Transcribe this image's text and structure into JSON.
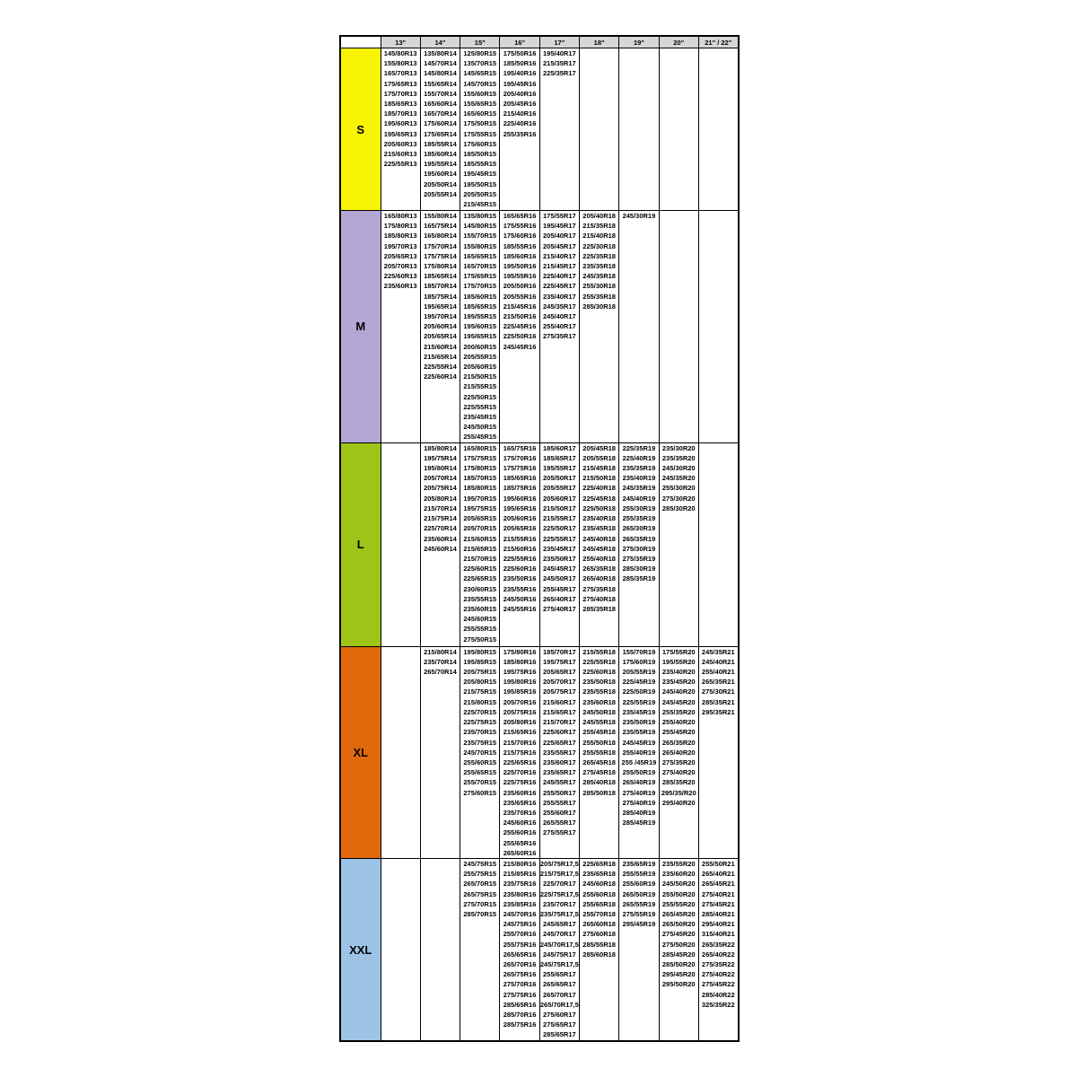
{
  "table": {
    "columns": [
      "",
      "13\"",
      "14\"",
      "15\"",
      "16\"",
      "17\"",
      "18\"",
      "19\"",
      "20\"",
      "21\" / 22\""
    ],
    "header_bg": "#d6d6d6",
    "rows": [
      {
        "label": "S",
        "color": "#f8f402",
        "cells": [
          [
            "145/80R13",
            "155/80R13",
            "165/70R13",
            "175/65R13",
            "175/70R13",
            "185/65R13",
            "185/70R13",
            "195/60R13",
            "195/65R13",
            "205/60R13",
            "215/60R13",
            "225/55R13"
          ],
          [
            "135/80R14",
            "145/70R14",
            "145/80R14",
            "155/65R14",
            "155/70R14",
            "165/60R14",
            "165/70R14",
            "175/60R14",
            "175/65R14",
            "185/55R14",
            "185/60R14",
            "195/55R14",
            "195/60R14",
            "205/50R14",
            "205/55R14"
          ],
          [
            "125/80R15",
            "135/70R15",
            "145/65R15",
            "145/70R15",
            "155/60R15",
            "155/65R15",
            "165/60R15",
            "175/50R15",
            "175/55R15",
            "175/60R15",
            "185/50R15",
            "185/55R15",
            "195/45R15",
            "195/50R15",
            "205/50R15",
            "215/45R15"
          ],
          [
            "175/50R16",
            "185/50R16",
            "195/40R16",
            "195/45R16",
            "205/40R16",
            "205/45R16",
            "215/40R16",
            "225/40R16",
            "255/35R16"
          ],
          [
            "195/40R17",
            "215/35R17",
            "225/35R17"
          ],
          [],
          [],
          [],
          []
        ]
      },
      {
        "label": "M",
        "color": "#b4a7d6",
        "cells": [
          [
            "165/80R13",
            "175/80R13",
            "185/80R13",
            "195/70R13",
            "205/65R13",
            "205/70R13",
            "225/60R13",
            "235/60R13"
          ],
          [
            "155/80R14",
            "165/75R14",
            "165/80R14",
            "175/70R14",
            "175/75R14",
            "175/80R14",
            "185/65R14",
            "185/70R14",
            "185/75R14",
            "195/65R14",
            "195/70R14",
            "205/60R14",
            "205/65R14",
            "215/60R14",
            "215/65R14",
            "225/55R14",
            "225/60R14"
          ],
          [
            "135/80R15",
            "145/80R15",
            "155/70R15",
            "155/80R15",
            "165/65R15",
            "165/70R15",
            "175/65R15",
            "175/70R15",
            "185/60R15",
            "185/65R15",
            "195/55R15",
            "195/60R15",
            "195/65R15",
            "200/60R15",
            "205/55R15",
            "205/60R15",
            "215/50R15",
            "215/55R15",
            "225/50R15",
            "225/55R15",
            "235/45R15",
            "245/50R15",
            "255/45R15"
          ],
          [
            "165/65R16",
            "175/55R16",
            "175/60R16",
            "185/55R16",
            "185/60R16",
            "195/50R16",
            "195/55R16",
            "205/50R16",
            "205/55R16",
            "215/45R16",
            "215/50R16",
            "225/45R16",
            "225/50R16",
            "245/45R16"
          ],
          [
            "175/55R17",
            "195/45R17",
            "205/40R17",
            "205/45R17",
            "215/40R17",
            "215/45R17",
            "225/40R17",
            "225/45R17",
            "235/40R17",
            "245/35R17",
            "245/40R17",
            "255/40R17",
            "275/35R17"
          ],
          [
            "205/40R18",
            "215/35R18",
            "215/40R18",
            "225/30R18",
            "225/35R18",
            "235/35R18",
            "245/35R18",
            "255/30R18",
            "255/35R18",
            "285/30R18"
          ],
          [
            "245/30R19"
          ],
          [],
          []
        ]
      },
      {
        "label": "L",
        "color": "#9ec517",
        "cells": [
          [],
          [
            "185/80R14",
            "195/75R14",
            "195/80R14",
            "205/70R14",
            "205/75R14",
            "205/80R14",
            "215/70R14",
            "215/75R14",
            "225/70R14",
            "235/60R14",
            "245/60R14"
          ],
          [
            "165/80R15",
            "175/75R15",
            "175/80R15",
            "185/70R15",
            "185/80R15",
            "195/70R15",
            "195/75R15",
            "205/65R15",
            "205/70R15",
            "215/60R15",
            "215/65R15",
            "215/70R15",
            "225/60R15",
            "225/65R15",
            "230/60R15",
            "235/55R15",
            "235/60R15",
            "245/60R15",
            "255/55R15",
            "275/50R15"
          ],
          [
            "165/75R16",
            "175/70R16",
            "175/75R16",
            "185/65R16",
            "185/75R16",
            "195/60R16",
            "195/65R16",
            "205/60R16",
            "205/65R16",
            "215/55R16",
            "215/60R16",
            "225/55R16",
            "225/60R16",
            "235/50R16",
            "235/55R16",
            "245/50R16",
            "245/55R16"
          ],
          [
            "185/60R17",
            "185/65R17",
            "195/55R17",
            "205/50R17",
            "205/55R17",
            "205/60R17",
            "215/50R17",
            "215/55R17",
            "225/50R17",
            "225/55R17",
            "235/45R17",
            "235/50R17",
            "245/45R17",
            "245/50R17",
            "255/45R17",
            "265/40R17",
            "275/40R17"
          ],
          [
            "205/45R18",
            "205/55R18",
            "215/45R18",
            "215/50R18",
            "225/40R18",
            "225/45R18",
            "225/50R18",
            "235/40R18",
            "235/45R18",
            "245/40R18",
            "245/45R18",
            "255/40R18",
            "265/35R18",
            "265/40R18",
            "275/35R18",
            "275/40R18",
            "285/35R18"
          ],
          [
            "225/35R19",
            "225/40R19",
            "235/35R19",
            "235/40R19",
            "245/35R19",
            "245/40R19",
            "255/30R19",
            "255/35R19",
            "265/30R19",
            "265/35R19",
            "275/30R19",
            "275/35R19",
            "285/30R19",
            "285/35R19"
          ],
          [
            "235/30R20",
            "235/35R20",
            "245/30R20",
            "245/35R20",
            "255/30R20",
            "275/30R20",
            "285/30R20"
          ],
          []
        ]
      },
      {
        "label": "XL",
        "color": "#e2690b",
        "cells": [
          [],
          [
            "215/80R14",
            "235/70R14",
            "265/70R14"
          ],
          [
            "195/80R15",
            "195/85R15",
            "205/75R15",
            "205/80R15",
            "215/75R15",
            "215/80R15",
            "225/70R15",
            "225/75R15",
            "235/70R15",
            "235/75R15",
            "245/70R15",
            "255/60R15",
            "255/65R15",
            "255/70R15",
            "275/60R15"
          ],
          [
            "175/80R16",
            "185/80R16",
            "195/75R16",
            "195/80R16",
            "195/85R16",
            "205/70R16",
            "205/75R16",
            "205/80R16",
            "215/65R16",
            "215/70R16",
            "215/75R16",
            "225/65R16",
            "225/70R16",
            "225/75R16",
            "235/60R16",
            "235/65R16",
            "235/70R16",
            "245/60R16",
            "255/60R16",
            "255/65R16",
            "265/60R16"
          ],
          [
            "185/70R17",
            "195/75R17",
            "205/65R17",
            "205/70R17",
            "205/75R17",
            "215/60R17",
            "215/65R17",
            "215/70R17",
            "225/60R17",
            "225/65R17",
            "235/55R17",
            "235/60R17",
            "235/65R17",
            "245/55R17",
            "255/50R17",
            "255/55R17",
            "255/60R17",
            "265/55R17",
            "275/55R17"
          ],
          [
            "215/55R18",
            "225/55R18",
            "225/60R18",
            "235/50R18",
            "235/55R18",
            "235/60R18",
            "245/50R18",
            "245/55R18",
            "255/45R18",
            "255/50R18",
            "255/55R18",
            "265/45R18",
            "275/45R18",
            "285/40R18",
            "285/50R18"
          ],
          [
            "155/70R19",
            "175/60R19",
            "205/55R19",
            "225/45R19",
            "225/50R19",
            "225/55R19",
            "235/45R19",
            "235/50R19",
            "235/55R19",
            "245/45R19",
            "255/40R19",
            "255 /45R19",
            "255/50R19",
            "265/40R19",
            "275/40R19",
            "275/40R19",
            "285/40R19",
            "285/45R19"
          ],
          [
            "175/55R20",
            "195/55R20",
            "235/40R20",
            "235/45R20",
            "245/40R20",
            "245/45R20",
            "255/35R20",
            "255/40R20",
            "255/45R20",
            "265/35R20",
            "265/40R20",
            "275/35R20",
            "275/40R20",
            "285/35R20",
            "295/35/R20",
            "295/40R20"
          ],
          [
            "245/35R21",
            "245/40R21",
            "255/40R21",
            "265/35R21",
            "275/30R21",
            "285/35R21",
            "295/35R21"
          ]
        ]
      },
      {
        "label": "XXL",
        "color": "#9dc3e6",
        "cells": [
          [],
          [],
          [
            "245/75R15",
            "255/75R15",
            "265/70R15",
            "265/75R15",
            "275/70R15",
            "285/70R15"
          ],
          [
            "215/80R16",
            "215/85R16",
            "235/75R16",
            "235/80R16",
            "235/85R16",
            "245/70R16",
            "245/75R16",
            "255/70R16",
            "255/75R16",
            "265/65R16",
            "265/70R16",
            "265/75R16",
            "275/70R16",
            "275/75R16",
            "285/65R16",
            "285/70R16",
            "285/75R16"
          ],
          [
            "205/75R17,5",
            "215/75R17,5",
            "225/70R17",
            "225/75R17,5",
            "235/70R17",
            "235/75R17,5",
            "245/65R17",
            "245/70R17",
            "245/70R17,5",
            "245/75R17",
            "245/75R17,5",
            "255/65R17",
            "265/65R17",
            "265/70R17",
            "265/70R17,5",
            "275/60R17",
            "275/65R17",
            "285/65R17"
          ],
          [
            "225/65R18",
            "235/65R18",
            "245/60R18",
            "255/60R18",
            "255/65R18",
            "255/70R18",
            "265/60R18",
            "275/60R18",
            "285/55R18",
            "285/60R18"
          ],
          [
            "235/65R19",
            "255/55R19",
            "255/60R19",
            "265/50R19",
            "265/55R19",
            "275/55R19",
            "295/45R19"
          ],
          [
            "235/55R20",
            "235/60R20",
            "245/50R20",
            "255/50R20",
            "255/55R20",
            "265/45R20",
            "265/50R20",
            "275/45R20",
            "275/50R20",
            "285/45R20",
            "285/50R20",
            "295/45R20",
            "295/50R20"
          ],
          [
            "255/50R21",
            "265/40R21",
            "265/45R21",
            "275/40R21",
            "275/45R21",
            "285/40R21",
            "295/40R21",
            "315/40R21",
            "265/35R22",
            "265/40R22",
            "275/35R22",
            "275/40R22",
            "275/45R22",
            "285/40R22",
            "325/35R22"
          ]
        ]
      }
    ]
  }
}
